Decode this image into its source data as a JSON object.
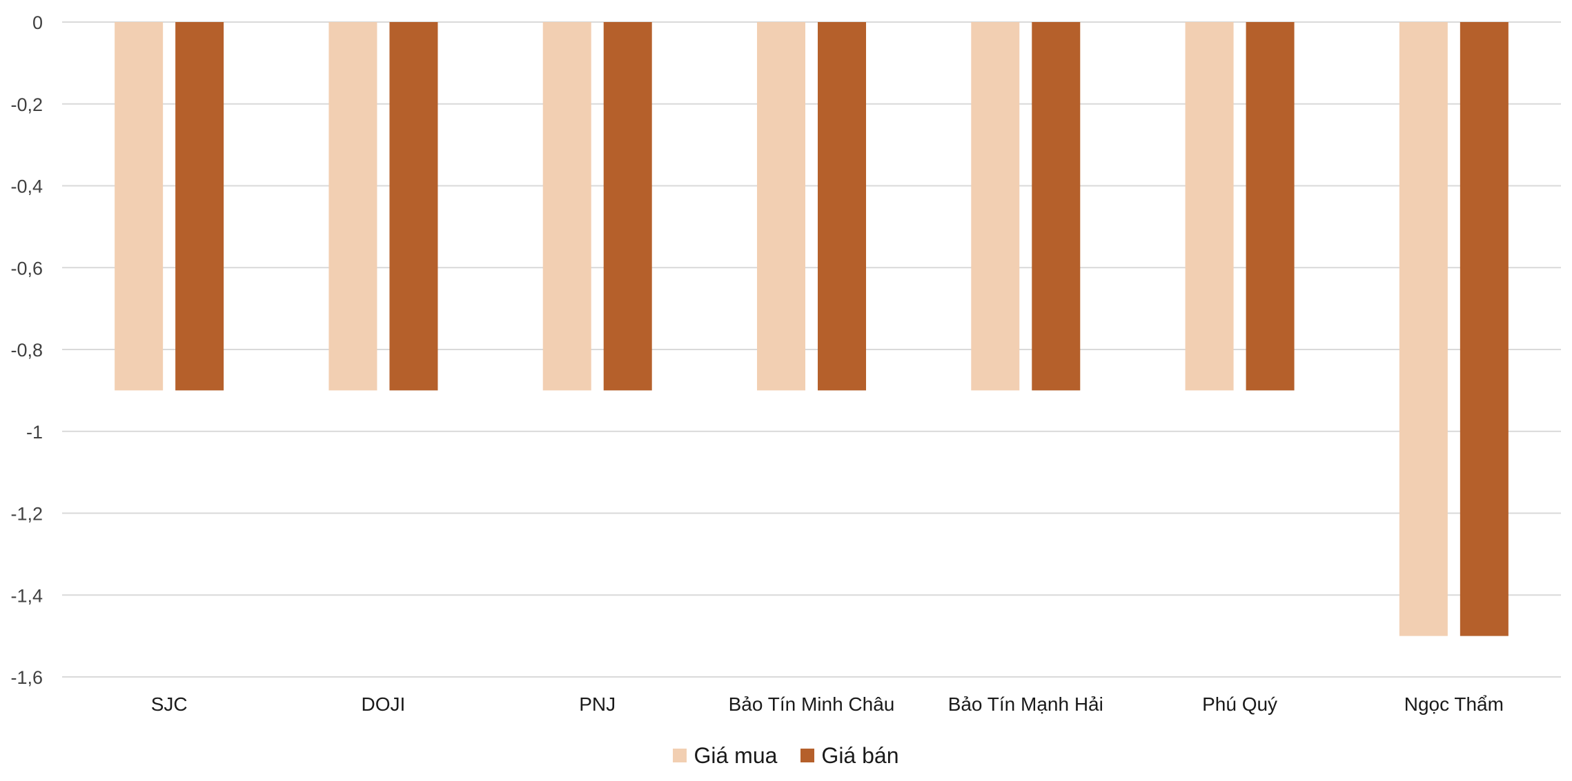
{
  "chart_data": {
    "type": "bar",
    "categories": [
      "SJC",
      "DOJI",
      "PNJ",
      "Bảo Tín Minh Châu",
      "Bảo Tín Mạnh Hải",
      "Phú Quý",
      "Ngọc Thẩm"
    ],
    "series": [
      {
        "name": "Giá mua",
        "color": "#F2CFB2",
        "values": [
          -0.9,
          -0.9,
          -0.9,
          -0.9,
          -0.9,
          -0.9,
          -1.5
        ]
      },
      {
        "name": "Giá bán",
        "color": "#B5602B",
        "values": [
          -0.9,
          -0.9,
          -0.9,
          -0.9,
          -0.9,
          -0.9,
          -1.5
        ]
      }
    ],
    "y_ticks": [
      "0",
      "-0,2",
      "-0,4",
      "-0,6",
      "-0,8",
      "-1",
      "-1,2",
      "-1,4",
      "-1,6"
    ],
    "ylim": [
      -1.6,
      0
    ],
    "grid": true,
    "legend_position": "bottom"
  }
}
